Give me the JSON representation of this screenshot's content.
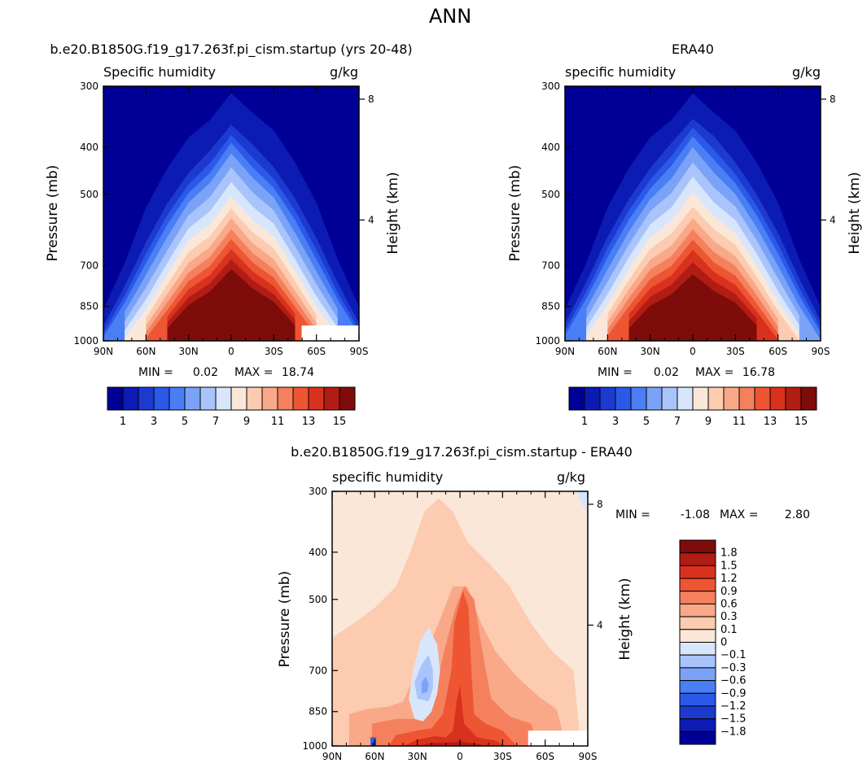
{
  "page_title": "ANN",
  "chart_data": [
    {
      "type": "heatmap",
      "title": "b.e20.B1850G.f19_g17.263f.pi_cism.startup (yrs 20-48)",
      "left_label": "Specific humidity",
      "units": "g/kg",
      "ylabel": "Pressure (mb)",
      "y2label": "Height (km)",
      "x_ticks": [
        "90N",
        "60N",
        "30N",
        "0",
        "30S",
        "60S",
        "90S"
      ],
      "y_ticks": [
        "300",
        "400",
        "500",
        "700",
        "850",
        "1000"
      ],
      "y2_ticks": [
        "8",
        "4"
      ],
      "stats": {
        "min_label": "MIN =",
        "min": "0.02",
        "max_label": "MAX =",
        "max": "18.74"
      },
      "ylim": [
        1000,
        300
      ],
      "profile": {
        "lat": [
          -90,
          -75,
          -60,
          -45,
          -30,
          -15,
          0,
          15,
          30,
          45,
          60,
          75,
          90
        ],
        "levels": [
          0.5,
          1,
          1.5,
          2,
          3,
          4,
          5,
          6,
          7,
          8,
          9,
          10,
          11,
          12,
          13,
          14,
          15,
          16,
          17,
          18
        ],
        "tops": [
          [
            310,
            360,
            378,
            392,
            412,
            440,
            472,
            505,
            535,
            560,
            590,
            618,
            648,
            680,
            712,
            745,
            778,
            812,
            850,
            895
          ],
          [
            340,
            395,
            420,
            440,
            462,
            495,
            530,
            565,
            598,
            630,
            660,
            690,
            720,
            750,
            780,
            810,
            840,
            870,
            905,
            950
          ],
          [
            370,
            440,
            465,
            485,
            508,
            540,
            575,
            610,
            645,
            680,
            712,
            742,
            772,
            802,
            832,
            860,
            888,
            915,
            945,
            980
          ],
          [
            430,
            510,
            540,
            565,
            600,
            640,
            680,
            718,
            755,
            790,
            822,
            852,
            880,
            905,
            930,
            955,
            978,
            1000,
            1020,
            1040
          ],
          [
            520,
            615,
            650,
            680,
            720,
            765,
            810,
            850,
            885,
            918,
            948,
            975,
            1000,
            1020,
            1040,
            1060,
            1080,
            1100,
            1120,
            1140
          ],
          [
            680,
            760,
            795,
            822,
            860,
            900,
            940,
            975,
            1005,
            1030,
            1055,
            1080,
            1100,
            1120,
            1140,
            1160,
            1180,
            1200,
            1220,
            1240
          ],
          [
            850,
            920,
            950,
            970,
            1000,
            1030,
            1060,
            1090,
            1115,
            1140,
            1160,
            1180,
            1200,
            1220,
            1240,
            1260,
            1280,
            1300,
            1320,
            1340
          ]
        ],
        "dry": {
          "north_p": 700,
          "south_p": 580,
          "south_last_lat": 88
        }
      },
      "bias_scale": 1.0,
      "notch": true
    },
    {
      "type": "heatmap",
      "title": "ERA40",
      "left_label": "specific humidity",
      "units": "g/kg",
      "ylabel": "Pressure (mb)",
      "y2label": "Height (km)",
      "x_ticks": [
        "90N",
        "60N",
        "30N",
        "0",
        "30S",
        "60S",
        "90S"
      ],
      "y_ticks": [
        "300",
        "400",
        "500",
        "700",
        "850",
        "1000"
      ],
      "y2_ticks": [
        "8",
        "4"
      ],
      "stats": {
        "min_label": "MIN =",
        "min": "0.02",
        "max_label": "MAX =",
        "max": "16.78"
      },
      "ylim": [
        1000,
        300
      ],
      "profile": {
        "lat": [
          -90,
          -75,
          -60,
          -45,
          -30,
          -15,
          0,
          15,
          30,
          45,
          60,
          75,
          90
        ],
        "levels": [
          0.5,
          1,
          1.5,
          2,
          3,
          4,
          5,
          6,
          7,
          8,
          9,
          10,
          11,
          12,
          13,
          14,
          15,
          16,
          17,
          18
        ],
        "tops": [
          [
            310,
            350,
            365,
            380,
            400,
            430,
            460,
            495,
            530,
            560,
            590,
            620,
            650,
            690,
            730,
            770,
            810,
            850,
            900,
            950
          ],
          [
            340,
            380,
            405,
            425,
            452,
            485,
            520,
            555,
            590,
            625,
            658,
            690,
            722,
            755,
            790,
            825,
            860,
            895,
            930,
            970
          ],
          [
            370,
            430,
            455,
            475,
            500,
            530,
            565,
            600,
            635,
            670,
            702,
            735,
            768,
            800,
            835,
            868,
            902,
            935,
            965,
            995
          ],
          [
            430,
            500,
            528,
            552,
            585,
            622,
            662,
            700,
            738,
            772,
            805,
            838,
            870,
            900,
            930,
            960,
            990,
            1020,
            1050,
            1080
          ],
          [
            520,
            600,
            632,
            662,
            702,
            745,
            790,
            830,
            868,
            902,
            935,
            965,
            995,
            1025,
            1055,
            1085,
            1115,
            1145,
            1175,
            1205
          ],
          [
            680,
            745,
            780,
            808,
            848,
            888,
            928,
            965,
            998,
            1025,
            1050,
            1075,
            1100,
            1125,
            1150,
            1175,
            1200,
            1225,
            1250,
            1275
          ],
          [
            850,
            910,
            940,
            962,
            995,
            1025,
            1055,
            1085,
            1110,
            1135,
            1160,
            1185,
            1210,
            1235,
            1260,
            1285,
            1310,
            1335,
            1360,
            1385
          ]
        ],
        "dry": {
          "north_p": 740,
          "south_p": 700,
          "south_last_lat": 90
        }
      },
      "bias_scale": 1.0,
      "notch": false
    }
  ],
  "colorbar_top": {
    "colors": [
      "#000096",
      "#0c1bb4",
      "#1d3ad0",
      "#2a59e8",
      "#4a7ef5",
      "#7aa3f8",
      "#a9c4fb",
      "#d8e6fc",
      "#fbe7d8",
      "#fccbb0",
      "#f9a888",
      "#f5805d",
      "#ee5533",
      "#d8321e",
      "#b11d15",
      "#7e0c0b"
    ],
    "labels": [
      "1",
      "3",
      "5",
      "7",
      "9",
      "11",
      "13",
      "15"
    ]
  },
  "diff_chart": {
    "type": "heatmap",
    "title": "b.e20.B1850G.f19_g17.263f.pi_cism.startup - ERA40",
    "left_label": "specific humidity",
    "units": "g/kg",
    "ylabel": "Pressure (mb)",
    "y2label": "Height (km)",
    "x_ticks": [
      "90N",
      "60N",
      "30N",
      "0",
      "30S",
      "60S",
      "90S"
    ],
    "y_ticks": [
      "300",
      "400",
      "500",
      "700",
      "850",
      "1000"
    ],
    "y2_ticks": [
      "8",
      "4"
    ],
    "stats": {
      "min_label": "MIN =",
      "min": "-1.08",
      "max_label": "MAX =",
      "max": "2.80"
    },
    "ylim": [
      1000,
      300
    ],
    "levels": [
      -1.8,
      -1.5,
      -1.2,
      -0.9,
      -0.6,
      -0.3,
      -0.1,
      0,
      0.1,
      0.3,
      0.6,
      0.9,
      1.2,
      1.5,
      1.8
    ],
    "colorbar": {
      "colors": [
        "#000096",
        "#0c1bb4",
        "#1d3ad0",
        "#2a59e8",
        "#4a7ef5",
        "#7aa3f8",
        "#a9c4fb",
        "#d8e6fc",
        "#fbe7d8",
        "#fccbb0",
        "#f9a888",
        "#f5805d",
        "#ee5533",
        "#d8321e",
        "#b11d15",
        "#7e0c0b"
      ],
      "labels": [
        "1.8",
        "1.5",
        "1.2",
        "0.9",
        "0.6",
        "0.3",
        "0.1",
        "0",
        "−0.1",
        "−0.3",
        "−0.6",
        "−0.9",
        "−1.2",
        "−1.5",
        "−1.8"
      ]
    }
  }
}
